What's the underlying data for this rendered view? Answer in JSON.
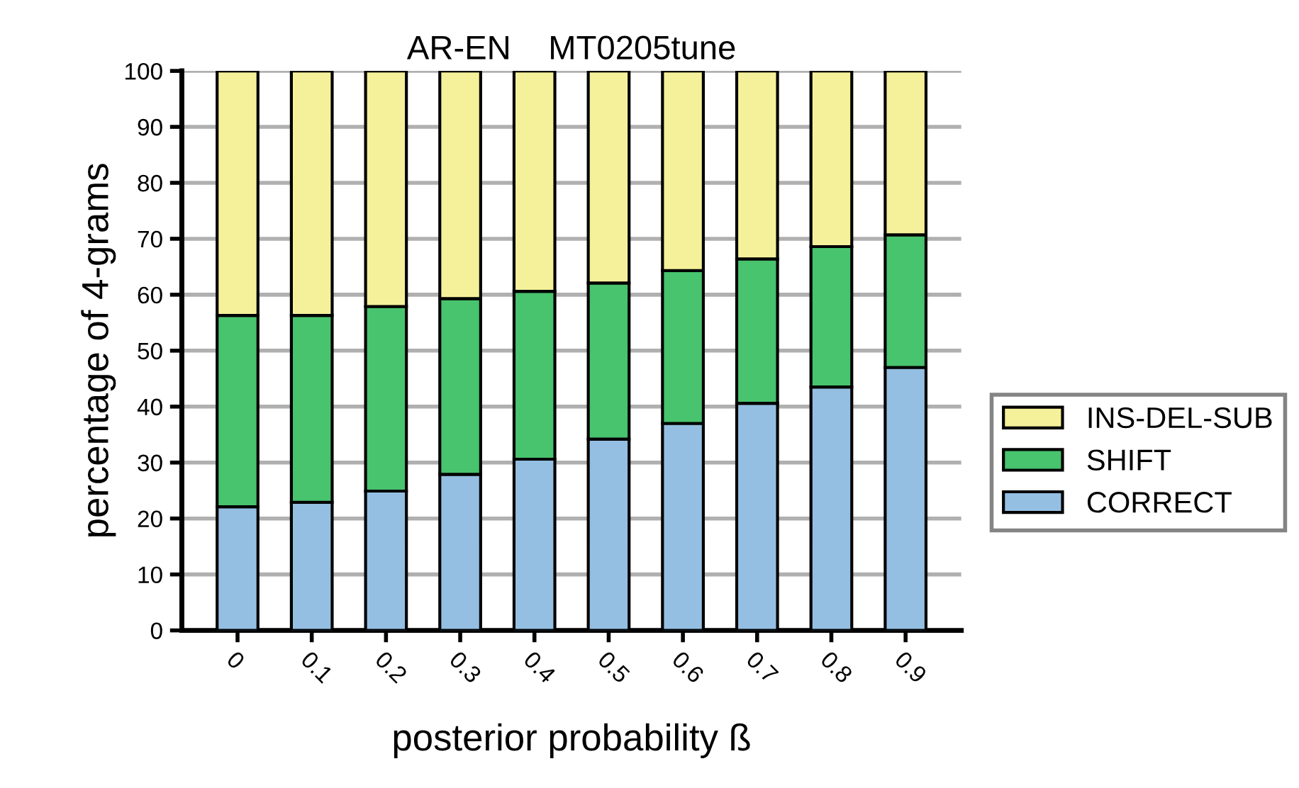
{
  "chart_data": {
    "type": "bar",
    "title": "AR-EN    MT0205tune",
    "xlabel": "posterior probability ß",
    "ylabel": "percentage of 4-grams",
    "categories": [
      "0",
      "0.1",
      "0.2",
      "0.3",
      "0.4",
      "0.5",
      "0.6",
      "0.7",
      "0.8",
      "0.9"
    ],
    "stacked": true,
    "series": [
      {
        "name": "CORRECT",
        "color": "#94bfe2",
        "values": [
          22.1,
          22.9,
          24.9,
          27.9,
          30.6,
          34.2,
          37.0,
          40.6,
          43.5,
          47.0
        ]
      },
      {
        "name": "SHIFT",
        "color": "#48c36e",
        "values": [
          34.2,
          33.4,
          33.0,
          31.4,
          30.0,
          27.9,
          27.3,
          25.8,
          25.1,
          23.7
        ]
      },
      {
        "name": "INS-DEL-SUB",
        "color": "#f5f19a",
        "values": [
          43.7,
          43.7,
          42.1,
          40.7,
          39.4,
          37.9,
          35.7,
          33.6,
          31.4,
          29.3
        ]
      }
    ],
    "ylim": [
      0,
      100
    ],
    "yticks": [
      0,
      10,
      20,
      30,
      40,
      50,
      60,
      70,
      80,
      90,
      100
    ],
    "grid": "y",
    "legend": "right"
  }
}
